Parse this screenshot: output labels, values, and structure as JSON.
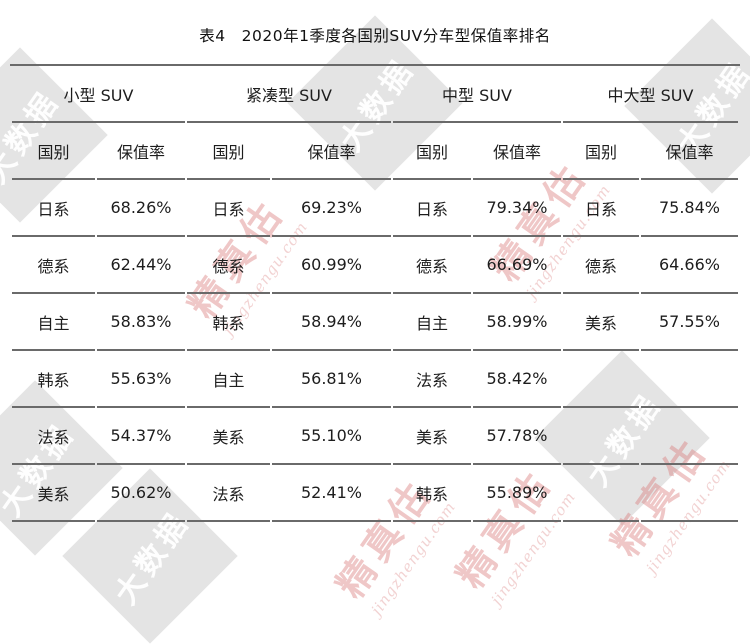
{
  "page": {
    "title_label": "表4　2020年1季度各国别SUV分车型保值率排名"
  },
  "table": {
    "col_country": "国别",
    "col_rate": "保值率",
    "groups": [
      {
        "label": "小型 SUV"
      },
      {
        "label": "紧凑型 SUV"
      },
      {
        "label": "中型 SUV"
      },
      {
        "label": "中大型 SUV"
      }
    ],
    "rows": [
      [
        {
          "country": "日系",
          "rate": "68.26%"
        },
        {
          "country": "日系",
          "rate": "69.23%"
        },
        {
          "country": "日系",
          "rate": "79.34%"
        },
        {
          "country": "日系",
          "rate": "75.84%"
        }
      ],
      [
        {
          "country": "德系",
          "rate": "62.44%"
        },
        {
          "country": "德系",
          "rate": "60.99%"
        },
        {
          "country": "德系",
          "rate": "66.69%"
        },
        {
          "country": "德系",
          "rate": "64.66%"
        }
      ],
      [
        {
          "country": "自主",
          "rate": "58.83%"
        },
        {
          "country": "韩系",
          "rate": "58.94%"
        },
        {
          "country": "自主",
          "rate": "58.99%"
        },
        {
          "country": "美系",
          "rate": "57.55%"
        }
      ],
      [
        {
          "country": "韩系",
          "rate": "55.63%"
        },
        {
          "country": "自主",
          "rate": "56.81%"
        },
        {
          "country": "法系",
          "rate": "58.42%"
        },
        {
          "country": "",
          "rate": ""
        }
      ],
      [
        {
          "country": "法系",
          "rate": "54.37%"
        },
        {
          "country": "美系",
          "rate": "55.10%"
        },
        {
          "country": "美系",
          "rate": "57.78%"
        },
        {
          "country": "",
          "rate": ""
        }
      ],
      [
        {
          "country": "美系",
          "rate": "50.62%"
        },
        {
          "country": "法系",
          "rate": "52.41%"
        },
        {
          "country": "韩系",
          "rate": "55.89%"
        },
        {
          "country": "",
          "rate": ""
        }
      ]
    ]
  },
  "watermark": {
    "diamond_text": "大数据",
    "brand_text": "精真估",
    "brand_url": "jingzhengu.com"
  },
  "colors": {
    "rule_gray": "#6a6a6a",
    "text_dark": "#1d1d1d",
    "watermark_gray": "#d7d7d7",
    "watermark_pink": "#d67474"
  }
}
